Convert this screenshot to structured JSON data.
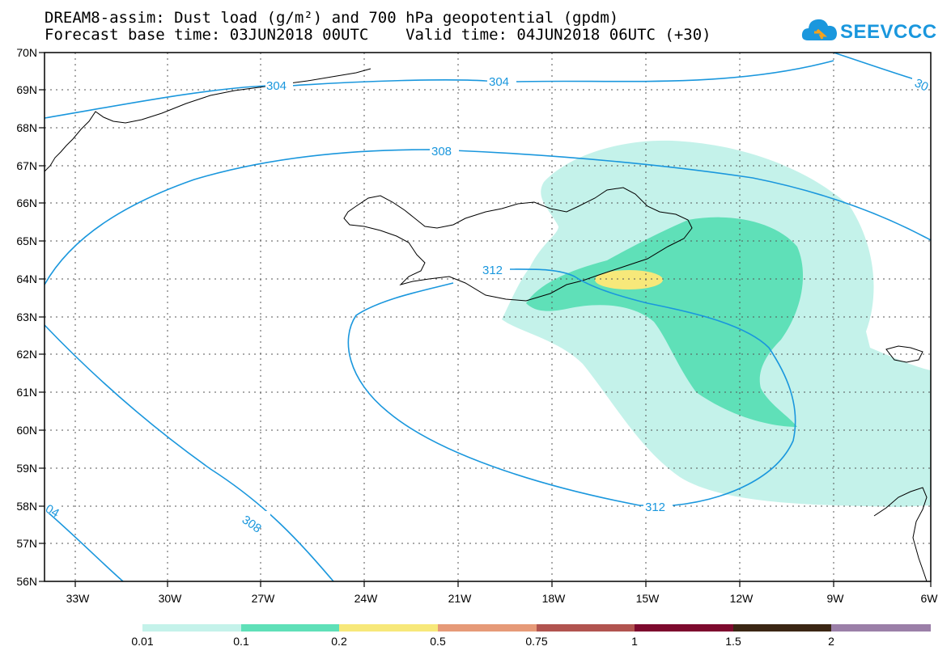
{
  "title_line1": "DREAM8-assim: Dust load (g/m²) and 700 hPa geopotential (gpdm)",
  "title_line2": "Forecast base time: 03JUN2018 00UTC    Valid time: 04JUN2018 06UTC (+30)",
  "logo_text": "SEEVCCC",
  "lat_labels": [
    "70N",
    "69N",
    "68N",
    "67N",
    "66N",
    "65N",
    "64N",
    "63N",
    "62N",
    "61N",
    "60N",
    "59N",
    "58N",
    "57N",
    "56N"
  ],
  "lon_labels": [
    "33W",
    "30W",
    "27W",
    "24W",
    "21W",
    "18W",
    "15W",
    "12W",
    "9W",
    "6W"
  ],
  "contour_labels": {
    "c304a": "304",
    "c304b": "304",
    "c304c": "30",
    "c308a": "308",
    "c308b": "308",
    "c312a": "312",
    "c312b": "312",
    "c304d": "04"
  },
  "legend": {
    "labels": [
      "0.01",
      "0.1",
      "0.2",
      "0.5",
      "0.75",
      "1",
      "1.5",
      "2"
    ],
    "colors": [
      "#c4f2ea",
      "#5fe0b8",
      "#f7e87a",
      "#e69a78",
      "#b1544f",
      "#7d0a2e",
      "#3b2614",
      "#9b7fa8"
    ]
  },
  "colors": {
    "contour": "#1a97dd",
    "dust_low": "#c4f2ea",
    "dust_mid": "#5fe0b8",
    "dust_high": "#f7e87a"
  }
}
